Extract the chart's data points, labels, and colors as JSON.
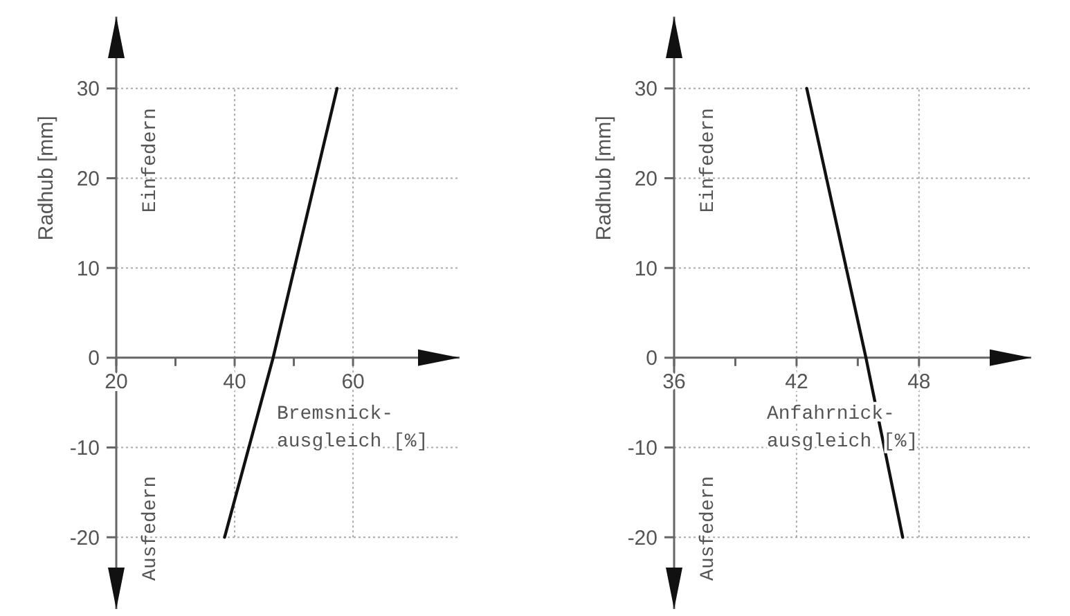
{
  "chart_data": [
    {
      "type": "line",
      "xlabel": "Bremsnick-\nausgleich [%]",
      "ylabel": "Radhub [mm]",
      "annotations": [
        "Einfedern",
        "Ausfedern"
      ],
      "xlim": [
        20,
        78
      ],
      "ylim": [
        -28,
        38
      ],
      "xticks": [
        20,
        {
          "value": 30,
          "label": null
        },
        40,
        {
          "value": 50,
          "label": null
        },
        60
      ],
      "yticks": [
        -20,
        -10,
        0,
        10,
        20,
        30
      ],
      "grid": true,
      "series": [
        {
          "color": "#111111",
          "x": [
            38.3,
            46.5,
            57.3
          ],
          "values": [
            -20,
            0,
            30
          ]
        }
      ]
    },
    {
      "type": "line",
      "xlabel": "Anfahrnick-\nausgleich [%]",
      "ylabel": "Radhub [mm]",
      "annotations": [
        "Einfedern",
        "Ausfedern"
      ],
      "xlim": [
        36,
        53.5
      ],
      "ylim": [
        -28,
        38
      ],
      "xticks": [
        36,
        {
          "value": 39,
          "label": null
        },
        42,
        {
          "value": 45,
          "label": null
        },
        48
      ],
      "yticks": [
        -20,
        -10,
        0,
        10,
        20,
        30
      ],
      "grid": true,
      "series": [
        {
          "color": "#111111",
          "x": [
            42.5,
            45.4,
            47.2
          ],
          "values": [
            30,
            0,
            -20
          ]
        }
      ]
    }
  ]
}
